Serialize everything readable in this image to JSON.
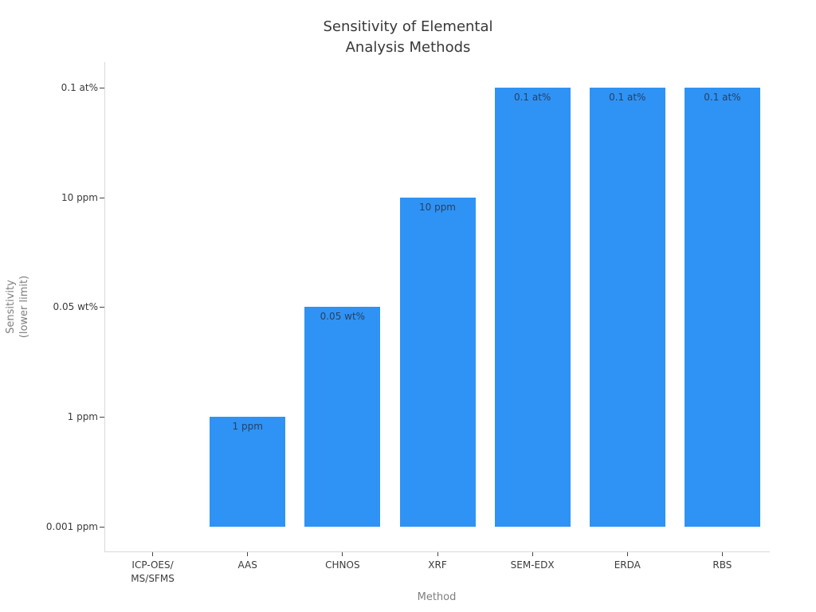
{
  "chart_data": {
    "type": "bar",
    "title": "Sensitivity of Elemental\nAnalysis Methods",
    "xlabel": "Method",
    "ylabel": "Sensitivity\n(lower limit)",
    "categories": [
      "ICP-OES/\nMS/SFMS",
      "AAS",
      "CHNOS",
      "XRF",
      "SEM-EDX",
      "ERDA",
      "RBS"
    ],
    "values": [
      0,
      1,
      2,
      3,
      4,
      4,
      4
    ],
    "value_labels": [
      "",
      "1 ppm",
      "0.05 wt%",
      "10 ppm",
      "0.1 at%",
      "0.1 at%",
      "0.1 at%"
    ],
    "ytick_values": [
      0,
      1,
      2,
      3,
      4
    ],
    "ytick_labels": [
      "0.001 ppm",
      "1 ppm",
      "0.05 wt%",
      "10 ppm",
      "0.1 at%"
    ],
    "ylim": [
      -0.225,
      4.232
    ],
    "bar_width_ratio": 0.8,
    "grid": false,
    "legend": false,
    "colors": {
      "bar": "#2E93F5",
      "bar_label": "#2a3f5f",
      "title": "#383838",
      "tick_label": "#3b3b3b",
      "axis_title": "#7f7f7f",
      "spine": "#d9d9d9",
      "tick_mark": "#444444",
      "background": "#ffffff"
    }
  }
}
